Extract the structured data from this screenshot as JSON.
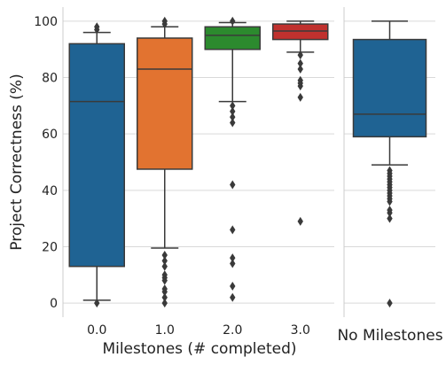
{
  "chart_data": [
    {
      "type": "box",
      "xlabel": "Milestones (# completed)",
      "ylabel": "Project Correctness (%)",
      "ylim": [
        -5,
        105
      ],
      "yticks": [
        0,
        20,
        40,
        60,
        80,
        100
      ],
      "grid": "horizontal",
      "categories": [
        "0.0",
        "1.0",
        "2.0",
        "3.0"
      ],
      "boxes": [
        {
          "category": "0.0",
          "color": "#1f6393",
          "whisker_low": 1,
          "q1": 13,
          "median": 71.5,
          "q3": 92,
          "whisker_high": 96,
          "outliers": [
            0,
            97,
            98
          ]
        },
        {
          "category": "1.0",
          "color": "#e27330",
          "whisker_low": 19.5,
          "q1": 47.5,
          "median": 83,
          "q3": 94,
          "whisker_high": 98,
          "outliers": [
            0,
            2,
            4,
            5,
            8,
            9,
            10,
            13,
            15,
            17,
            99,
            100
          ]
        },
        {
          "category": "2.0",
          "color": "#2c8a2e",
          "whisker_low": 71.5,
          "q1": 90,
          "median": 95,
          "q3": 98,
          "whisker_high": 99.5,
          "outliers": [
            2,
            6,
            14,
            16,
            26,
            42,
            64,
            66,
            68,
            70,
            100
          ]
        },
        {
          "category": "3.0",
          "color": "#c0312e",
          "whisker_low": 89,
          "q1": 93.5,
          "median": 96.5,
          "q3": 99,
          "whisker_high": 100,
          "outliers": [
            29,
            73,
            77,
            78,
            79,
            83,
            85,
            88
          ]
        }
      ]
    },
    {
      "type": "box",
      "xlabel": "No Milestones",
      "ylim": [
        -5,
        105
      ],
      "grid": "horizontal",
      "categories": [
        ""
      ],
      "boxes": [
        {
          "category": "",
          "color": "#1f6393",
          "whisker_low": 49,
          "q1": 59,
          "median": 67,
          "q3": 93.5,
          "whisker_high": 100,
          "outliers": [
            0,
            30,
            32,
            33,
            36,
            37,
            38,
            39,
            40,
            41,
            42,
            43,
            44,
            45,
            46,
            47
          ]
        }
      ]
    }
  ]
}
